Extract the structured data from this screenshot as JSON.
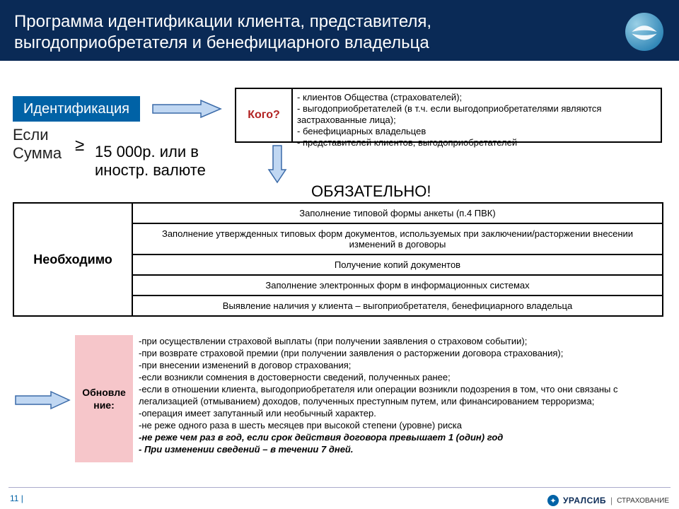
{
  "colors": {
    "header_bg": "#0a2a56",
    "accent_blue": "#0062a6",
    "pink": "#f6c6ca",
    "red_text": "#b22222",
    "arrow_fill": "#c0d7f2",
    "arrow_stroke": "#3a6aa8"
  },
  "header": {
    "title": "Программа идентификации клиента, представителя, выгодоприобретателя и бенефициарного владельца"
  },
  "ident": {
    "label": "Идентификация"
  },
  "condition": {
    "prefix": "Если\nСумма",
    "op": "≥",
    "value": "15 000р.  или в иностр. валюте"
  },
  "kogo": {
    "label": "Кого?",
    "items": [
      "- клиентов Общества (страхователей);",
      "- выгодоприобретателей (в т.ч. если выгодоприобретателями являются застрахованные лица);",
      "- бенефициарных владельцев",
      "- представителей клиентов, выгодоприобретателей"
    ]
  },
  "mandatory": "ОБЯЗАТЕЛЬНО!",
  "need": {
    "label": "Необходимо",
    "rows": [
      "Заполнение типовой формы анкеты (п.4 ПВК)",
      "Заполнение утвержденных типовых форм документов, используемых при заключении/расторжении внесении изменений в договоры",
      "Получение копий документов",
      "Заполнение электронных форм в информационных системах",
      "Выявление наличия у клиента – выгоприобретателя, бенефициарного владельца"
    ]
  },
  "update": {
    "label": "Обновле\nние:",
    "items": [
      "-при осуществлении страховой выплаты (при получении заявления о страховом событии);",
      "-при возврате страховой премии (при получении заявления о расторжении договора страхования);",
      "-при внесении изменений в договор страхования;",
      "-если возникли сомнения в достоверности сведений, полученных ранее;",
      "-если в отношении клиента, выгодоприобретателя или операции возникли подозрения в том, что они связаны с легализацией (отмыванием) доходов, полученных преступным путем, или финансированием терроризма;",
      "-операция имеет запутанный или необычный характер.",
      "-не реже одного раза в шесть месяцев при высокой степени (уровне) риска"
    ],
    "bold_items": [
      "-не реже чем раз в год, если срок действия договора превышает 1 (один) год",
      "- При изменении сведений – в течении 7 дней."
    ]
  },
  "footer": {
    "page": "11",
    "brand": "УРАЛСИБ",
    "sub": "СТРАХОВАНИЕ"
  }
}
